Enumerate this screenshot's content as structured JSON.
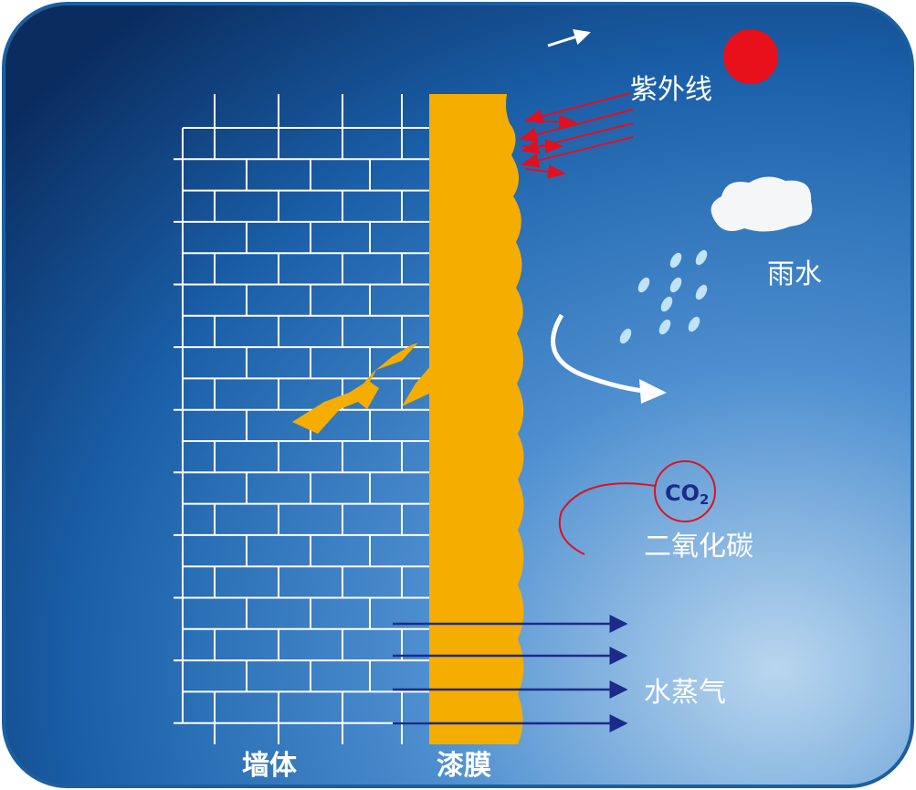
{
  "labels": {
    "uv": "紫外线",
    "rain": "雨水",
    "co2": {
      "main": "CO",
      "sub": "2"
    },
    "co2_name": "二氧化碳",
    "vapor": "水蒸气",
    "wall": "墙体",
    "film": "漆膜"
  }
}
